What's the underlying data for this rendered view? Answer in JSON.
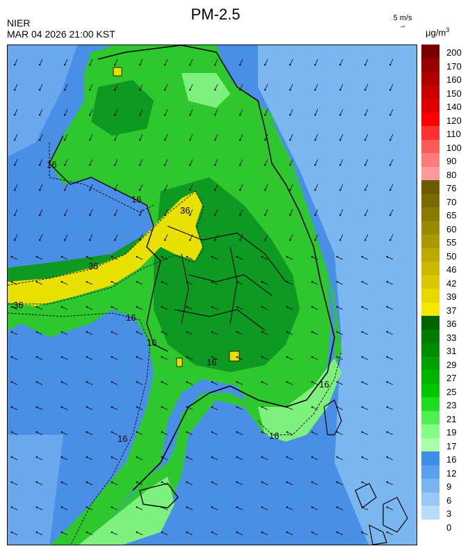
{
  "header": {
    "title": "PM-2.5",
    "agency": "NIER",
    "datetime": "MAR 04 2026 21:00 KST",
    "wind_reference": "5 m/s",
    "unit_main": "μg/m",
    "unit_sup": "3"
  },
  "legend": {
    "levels": [
      {
        "label": "200",
        "color": "#7a0000"
      },
      {
        "label": "170",
        "color": "#9a0000"
      },
      {
        "label": "160",
        "color": "#b00000"
      },
      {
        "label": "150",
        "color": "#c80000"
      },
      {
        "label": "140",
        "color": "#e00000"
      },
      {
        "label": "120",
        "color": "#ff0000"
      },
      {
        "label": "110",
        "color": "#ff3030"
      },
      {
        "label": "100",
        "color": "#ff5a5a"
      },
      {
        "label": "90",
        "color": "#ff7a7a"
      },
      {
        "label": "80",
        "color": "#ff9a9a"
      },
      {
        "label": "76",
        "color": "#6b5a00"
      },
      {
        "label": "70",
        "color": "#7a6a00"
      },
      {
        "label": "65",
        "color": "#8a7a00"
      },
      {
        "label": "60",
        "color": "#9a8a00"
      },
      {
        "label": "55",
        "color": "#aa9800"
      },
      {
        "label": "50",
        "color": "#bba800"
      },
      {
        "label": "46",
        "color": "#ccb800"
      },
      {
        "label": "42",
        "color": "#dcc800"
      },
      {
        "label": "39",
        "color": "#e8d800"
      },
      {
        "label": "37",
        "color": "#f4e800"
      },
      {
        "label": "36",
        "color": "#006400"
      },
      {
        "label": "33",
        "color": "#007a00"
      },
      {
        "label": "31",
        "color": "#008c00"
      },
      {
        "label": "29",
        "color": "#00a000"
      },
      {
        "label": "27",
        "color": "#00b400"
      },
      {
        "label": "25",
        "color": "#00c800"
      },
      {
        "label": "23",
        "color": "#20dc20"
      },
      {
        "label": "21",
        "color": "#50ee50"
      },
      {
        "label": "19",
        "color": "#80ff80"
      },
      {
        "label": "17",
        "color": "#a8ffa8"
      },
      {
        "label": "16",
        "color": "#3d8ee8"
      },
      {
        "label": "12",
        "color": "#5aa0ee"
      },
      {
        "label": "9",
        "color": "#78b4f2"
      },
      {
        "label": "6",
        "color": "#98c8f6"
      },
      {
        "label": "3",
        "color": "#b8dcfa"
      },
      {
        "label": "0",
        "color": "#ffffff"
      }
    ]
  },
  "contour_labels": [
    "16",
    "36",
    "36",
    "36",
    "16",
    "16",
    "16",
    "16",
    "16",
    "16",
    "16"
  ],
  "colors": {
    "sea_blue": "#4a8fe6",
    "light_blue": "#7ab6f0",
    "green": "#2ec82e",
    "dark_green": "#0e9a22",
    "light_green": "#7ef07e",
    "yellow": "#e8e000"
  }
}
